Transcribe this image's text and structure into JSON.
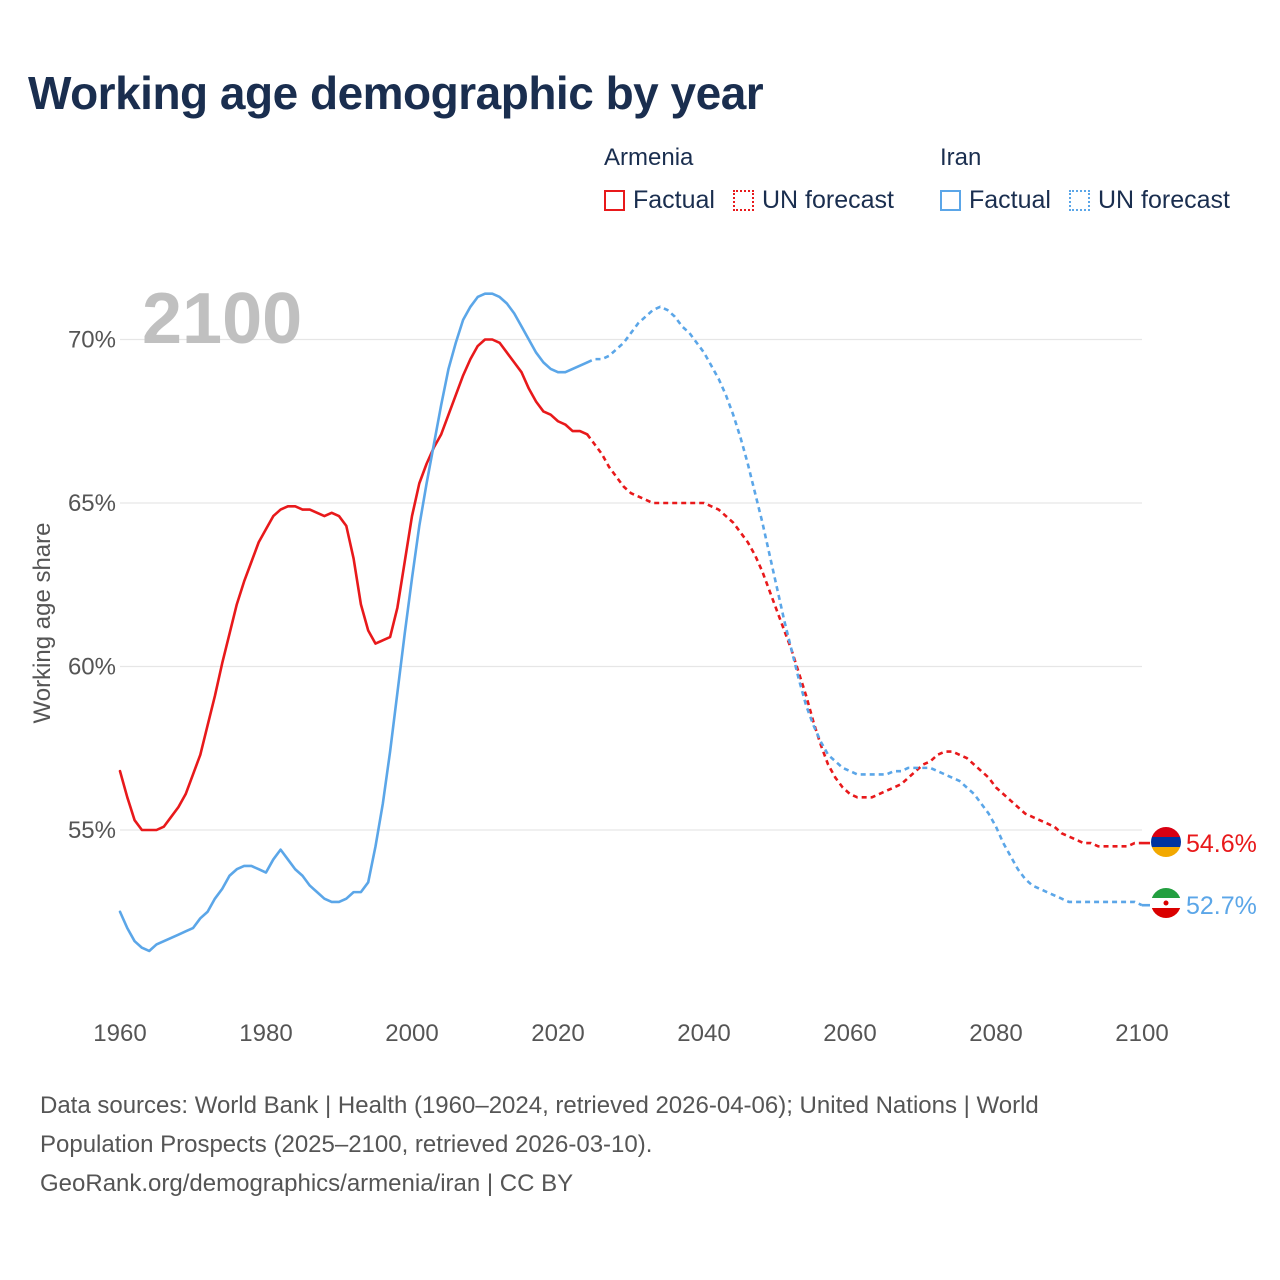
{
  "title": "Working age demographic by year",
  "legend": {
    "groups": [
      {
        "country": "Armenia",
        "factual": "Factual",
        "forecast": "UN forecast",
        "color": "#e8191b"
      },
      {
        "country": "Iran",
        "factual": "Factual",
        "forecast": "UN forecast",
        "color": "#5ba6e8"
      }
    ]
  },
  "year_label": "2100",
  "source": {
    "line1": "Data sources: World Bank | Health (1960–2024, retrieved 2026-04-06); United Nations | World",
    "line2": "Population Prospects (2025–2100, retrieved 2026-03-10).",
    "line3": "GeoRank.org/demographics/armenia/iran | CC BY"
  },
  "chart_data": {
    "type": "line",
    "ylabel": "Working age share",
    "xlabel": "",
    "xlim": [
      1960,
      2100
    ],
    "ylim": [
      49.5,
      72.5
    ],
    "x_ticks": [
      1960,
      1980,
      2000,
      2020,
      2040,
      2060,
      2080,
      2100
    ],
    "x_tick_labels": [
      "1960",
      "1980",
      "2000",
      "2020",
      "2040",
      "2060",
      "2080",
      "2100"
    ],
    "y_ticks": [
      55,
      60,
      65,
      70
    ],
    "y_tick_labels": [
      "55%",
      "60%",
      "65%",
      "70%"
    ],
    "factual_end": 2024,
    "series": [
      {
        "name": "Armenia",
        "color": "#e8191b",
        "end_label": "54.6%",
        "points": [
          [
            1960,
            56.8
          ],
          [
            1961,
            56.0
          ],
          [
            1962,
            55.3
          ],
          [
            1963,
            55.0
          ],
          [
            1964,
            55.0
          ],
          [
            1965,
            55.0
          ],
          [
            1966,
            55.1
          ],
          [
            1967,
            55.4
          ],
          [
            1968,
            55.7
          ],
          [
            1969,
            56.1
          ],
          [
            1970,
            56.7
          ],
          [
            1971,
            57.3
          ],
          [
            1972,
            58.2
          ],
          [
            1973,
            59.1
          ],
          [
            1974,
            60.1
          ],
          [
            1975,
            61.0
          ],
          [
            1976,
            61.9
          ],
          [
            1977,
            62.6
          ],
          [
            1978,
            63.2
          ],
          [
            1979,
            63.8
          ],
          [
            1980,
            64.2
          ],
          [
            1981,
            64.6
          ],
          [
            1982,
            64.8
          ],
          [
            1983,
            64.9
          ],
          [
            1984,
            64.9
          ],
          [
            1985,
            64.8
          ],
          [
            1986,
            64.8
          ],
          [
            1987,
            64.7
          ],
          [
            1988,
            64.6
          ],
          [
            1989,
            64.7
          ],
          [
            1990,
            64.6
          ],
          [
            1991,
            64.3
          ],
          [
            1992,
            63.3
          ],
          [
            1993,
            61.9
          ],
          [
            1994,
            61.1
          ],
          [
            1995,
            60.7
          ],
          [
            1996,
            60.8
          ],
          [
            1997,
            60.9
          ],
          [
            1998,
            61.8
          ],
          [
            1999,
            63.2
          ],
          [
            2000,
            64.6
          ],
          [
            2001,
            65.6
          ],
          [
            2002,
            66.2
          ],
          [
            2003,
            66.7
          ],
          [
            2004,
            67.1
          ],
          [
            2005,
            67.7
          ],
          [
            2006,
            68.3
          ],
          [
            2007,
            68.9
          ],
          [
            2008,
            69.4
          ],
          [
            2009,
            69.8
          ],
          [
            2010,
            70.0
          ],
          [
            2011,
            70.0
          ],
          [
            2012,
            69.9
          ],
          [
            2013,
            69.6
          ],
          [
            2014,
            69.3
          ],
          [
            2015,
            69.0
          ],
          [
            2016,
            68.5
          ],
          [
            2017,
            68.1
          ],
          [
            2018,
            67.8
          ],
          [
            2019,
            67.7
          ],
          [
            2020,
            67.5
          ],
          [
            2021,
            67.4
          ],
          [
            2022,
            67.2
          ],
          [
            2023,
            67.2
          ],
          [
            2024,
            67.1
          ],
          [
            2025,
            66.8
          ],
          [
            2026,
            66.5
          ],
          [
            2027,
            66.1
          ],
          [
            2028,
            65.8
          ],
          [
            2029,
            65.5
          ],
          [
            2030,
            65.3
          ],
          [
            2031,
            65.2
          ],
          [
            2032,
            65.1
          ],
          [
            2033,
            65.0
          ],
          [
            2034,
            65.0
          ],
          [
            2035,
            65.0
          ],
          [
            2036,
            65.0
          ],
          [
            2037,
            65.0
          ],
          [
            2038,
            65.0
          ],
          [
            2039,
            65.0
          ],
          [
            2040,
            65.0
          ],
          [
            2041,
            64.9
          ],
          [
            2042,
            64.8
          ],
          [
            2043,
            64.6
          ],
          [
            2044,
            64.4
          ],
          [
            2045,
            64.1
          ],
          [
            2046,
            63.8
          ],
          [
            2047,
            63.4
          ],
          [
            2048,
            62.9
          ],
          [
            2049,
            62.3
          ],
          [
            2050,
            61.7
          ],
          [
            2051,
            61.1
          ],
          [
            2052,
            60.5
          ],
          [
            2053,
            59.8
          ],
          [
            2054,
            59.1
          ],
          [
            2055,
            58.3
          ],
          [
            2056,
            57.6
          ],
          [
            2057,
            57.0
          ],
          [
            2058,
            56.6
          ],
          [
            2059,
            56.3
          ],
          [
            2060,
            56.1
          ],
          [
            2061,
            56.0
          ],
          [
            2062,
            56.0
          ],
          [
            2063,
            56.0
          ],
          [
            2064,
            56.1
          ],
          [
            2065,
            56.2
          ],
          [
            2066,
            56.3
          ],
          [
            2067,
            56.4
          ],
          [
            2068,
            56.6
          ],
          [
            2069,
            56.8
          ],
          [
            2070,
            57.0
          ],
          [
            2071,
            57.1
          ],
          [
            2072,
            57.3
          ],
          [
            2073,
            57.4
          ],
          [
            2074,
            57.4
          ],
          [
            2075,
            57.3
          ],
          [
            2076,
            57.2
          ],
          [
            2077,
            57.0
          ],
          [
            2078,
            56.8
          ],
          [
            2079,
            56.6
          ],
          [
            2080,
            56.3
          ],
          [
            2081,
            56.1
          ],
          [
            2082,
            55.9
          ],
          [
            2083,
            55.7
          ],
          [
            2084,
            55.5
          ],
          [
            2085,
            55.4
          ],
          [
            2086,
            55.3
          ],
          [
            2087,
            55.2
          ],
          [
            2088,
            55.1
          ],
          [
            2089,
            54.9
          ],
          [
            2090,
            54.8
          ],
          [
            2091,
            54.7
          ],
          [
            2092,
            54.6
          ],
          [
            2093,
            54.6
          ],
          [
            2094,
            54.5
          ],
          [
            2095,
            54.5
          ],
          [
            2096,
            54.5
          ],
          [
            2097,
            54.5
          ],
          [
            2098,
            54.5
          ],
          [
            2099,
            54.6
          ],
          [
            2100,
            54.6
          ]
        ]
      },
      {
        "name": "Iran",
        "color": "#5ba6e8",
        "end_label": "52.7%",
        "points": [
          [
            1960,
            52.5
          ],
          [
            1961,
            52.0
          ],
          [
            1962,
            51.6
          ],
          [
            1963,
            51.4
          ],
          [
            1964,
            51.3
          ],
          [
            1965,
            51.5
          ],
          [
            1966,
            51.6
          ],
          [
            1967,
            51.7
          ],
          [
            1968,
            51.8
          ],
          [
            1969,
            51.9
          ],
          [
            1970,
            52.0
          ],
          [
            1971,
            52.3
          ],
          [
            1972,
            52.5
          ],
          [
            1973,
            52.9
          ],
          [
            1974,
            53.2
          ],
          [
            1975,
            53.6
          ],
          [
            1976,
            53.8
          ],
          [
            1977,
            53.9
          ],
          [
            1978,
            53.9
          ],
          [
            1979,
            53.8
          ],
          [
            1980,
            53.7
          ],
          [
            1981,
            54.1
          ],
          [
            1982,
            54.4
          ],
          [
            1983,
            54.1
          ],
          [
            1984,
            53.8
          ],
          [
            1985,
            53.6
          ],
          [
            1986,
            53.3
          ],
          [
            1987,
            53.1
          ],
          [
            1988,
            52.9
          ],
          [
            1989,
            52.8
          ],
          [
            1990,
            52.8
          ],
          [
            1991,
            52.9
          ],
          [
            1992,
            53.1
          ],
          [
            1993,
            53.1
          ],
          [
            1994,
            53.4
          ],
          [
            1995,
            54.5
          ],
          [
            1996,
            55.8
          ],
          [
            1997,
            57.4
          ],
          [
            1998,
            59.2
          ],
          [
            1999,
            61.0
          ],
          [
            2000,
            62.7
          ],
          [
            2001,
            64.3
          ],
          [
            2002,
            65.6
          ],
          [
            2003,
            66.8
          ],
          [
            2004,
            68.0
          ],
          [
            2005,
            69.1
          ],
          [
            2006,
            69.9
          ],
          [
            2007,
            70.6
          ],
          [
            2008,
            71.0
          ],
          [
            2009,
            71.3
          ],
          [
            2010,
            71.4
          ],
          [
            2011,
            71.4
          ],
          [
            2012,
            71.3
          ],
          [
            2013,
            71.1
          ],
          [
            2014,
            70.8
          ],
          [
            2015,
            70.4
          ],
          [
            2016,
            70.0
          ],
          [
            2017,
            69.6
          ],
          [
            2018,
            69.3
          ],
          [
            2019,
            69.1
          ],
          [
            2020,
            69.0
          ],
          [
            2021,
            69.0
          ],
          [
            2022,
            69.1
          ],
          [
            2023,
            69.2
          ],
          [
            2024,
            69.3
          ],
          [
            2025,
            69.4
          ],
          [
            2026,
            69.4
          ],
          [
            2027,
            69.5
          ],
          [
            2028,
            69.7
          ],
          [
            2029,
            69.9
          ],
          [
            2030,
            70.2
          ],
          [
            2031,
            70.5
          ],
          [
            2032,
            70.7
          ],
          [
            2033,
            70.9
          ],
          [
            2034,
            71.0
          ],
          [
            2035,
            70.9
          ],
          [
            2036,
            70.7
          ],
          [
            2037,
            70.4
          ],
          [
            2038,
            70.2
          ],
          [
            2039,
            69.9
          ],
          [
            2040,
            69.6
          ],
          [
            2041,
            69.2
          ],
          [
            2042,
            68.8
          ],
          [
            2043,
            68.3
          ],
          [
            2044,
            67.7
          ],
          [
            2045,
            67.0
          ],
          [
            2046,
            66.2
          ],
          [
            2047,
            65.3
          ],
          [
            2048,
            64.4
          ],
          [
            2049,
            63.4
          ],
          [
            2050,
            62.4
          ],
          [
            2051,
            61.4
          ],
          [
            2052,
            60.5
          ],
          [
            2053,
            59.6
          ],
          [
            2054,
            58.8
          ],
          [
            2055,
            58.2
          ],
          [
            2056,
            57.7
          ],
          [
            2057,
            57.3
          ],
          [
            2058,
            57.1
          ],
          [
            2059,
            56.9
          ],
          [
            2060,
            56.8
          ],
          [
            2061,
            56.7
          ],
          [
            2062,
            56.7
          ],
          [
            2063,
            56.7
          ],
          [
            2064,
            56.7
          ],
          [
            2065,
            56.7
          ],
          [
            2066,
            56.8
          ],
          [
            2067,
            56.8
          ],
          [
            2068,
            56.9
          ],
          [
            2069,
            56.9
          ],
          [
            2070,
            56.9
          ],
          [
            2071,
            56.9
          ],
          [
            2072,
            56.8
          ],
          [
            2073,
            56.7
          ],
          [
            2074,
            56.6
          ],
          [
            2075,
            56.5
          ],
          [
            2076,
            56.3
          ],
          [
            2077,
            56.1
          ],
          [
            2078,
            55.8
          ],
          [
            2079,
            55.5
          ],
          [
            2080,
            55.1
          ],
          [
            2081,
            54.6
          ],
          [
            2082,
            54.2
          ],
          [
            2083,
            53.8
          ],
          [
            2084,
            53.5
          ],
          [
            2085,
            53.3
          ],
          [
            2086,
            53.2
          ],
          [
            2087,
            53.1
          ],
          [
            2088,
            53.0
          ],
          [
            2089,
            52.9
          ],
          [
            2090,
            52.8
          ],
          [
            2091,
            52.8
          ],
          [
            2092,
            52.8
          ],
          [
            2093,
            52.8
          ],
          [
            2094,
            52.8
          ],
          [
            2095,
            52.8
          ],
          [
            2096,
            52.8
          ],
          [
            2097,
            52.8
          ],
          [
            2098,
            52.8
          ],
          [
            2099,
            52.8
          ],
          [
            2100,
            52.7
          ]
        ]
      }
    ]
  }
}
